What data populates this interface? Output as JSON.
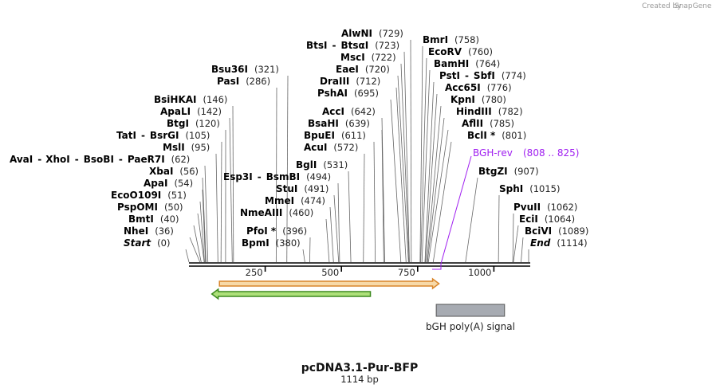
{
  "credit": {
    "prefix": "Created by",
    "brand": "SnapGene"
  },
  "map": {
    "title": "pcDNA3.1-Pur-BFP",
    "length_label": "1114 bp",
    "total_bp": 1114
  },
  "axis": {
    "ticks": [
      {
        "bp": 250,
        "label": "250"
      },
      {
        "bp": 500,
        "label": "500"
      },
      {
        "bp": 750,
        "label": "750"
      },
      {
        "bp": 1000,
        "label": "1000"
      }
    ]
  },
  "sites_left": [
    {
      "pos": "(62)",
      "bp": 62,
      "parts": [
        "AvaI",
        "-",
        "XhoI",
        "-",
        "BsoBI",
        "-",
        "PaeR7I"
      ]
    },
    {
      "pos": "(146)",
      "bp": 146,
      "parts": [
        "BsiHKAI"
      ]
    },
    {
      "pos": "(142)",
      "bp": 142,
      "parts": [
        "ApaLI"
      ]
    },
    {
      "pos": "(120)",
      "bp": 120,
      "parts": [
        "BtgI"
      ]
    },
    {
      "pos": "(105)",
      "bp": 105,
      "parts": [
        "TatI",
        "-",
        "BsrGI"
      ]
    },
    {
      "pos": "(95)",
      "bp": 95,
      "parts": [
        "MslI"
      ]
    },
    {
      "pos": "(56)",
      "bp": 56,
      "parts": [
        "XbaI"
      ]
    },
    {
      "pos": "(54)",
      "bp": 54,
      "parts": [
        "ApaI"
      ]
    },
    {
      "pos": "(51)",
      "bp": 51,
      "parts": [
        "EcoO109I"
      ]
    },
    {
      "pos": "(50)",
      "bp": 50,
      "parts": [
        "PspOMI"
      ]
    },
    {
      "pos": "(40)",
      "bp": 40,
      "parts": [
        "BmtI"
      ]
    },
    {
      "pos": "(36)",
      "bp": 36,
      "parts": [
        "NheI"
      ]
    },
    {
      "pos": "(0)",
      "bp": 0,
      "parts": [
        "Start"
      ],
      "italic": true
    }
  ],
  "sites_mid": [
    {
      "pos": "(321)",
      "bp": 321,
      "parts": [
        "Bsu36I"
      ]
    },
    {
      "pos": "(286)",
      "bp": 286,
      "parts": [
        "PasI"
      ]
    },
    {
      "pos": "(494)",
      "bp": 494,
      "parts": [
        "Esp3I",
        "-",
        "BsmBI"
      ]
    },
    {
      "pos": "(491)",
      "bp": 491,
      "parts": [
        "StuI"
      ]
    },
    {
      "pos": "(474)",
      "bp": 474,
      "parts": [
        "MmeI"
      ]
    },
    {
      "pos": "(460)",
      "bp": 460,
      "parts": [
        "NmeAIII"
      ]
    },
    {
      "pos": "(396)",
      "bp": 396,
      "parts": [
        "PfoI *"
      ]
    },
    {
      "pos": "(380)",
      "bp": 380,
      "parts": [
        "BpmI"
      ]
    },
    {
      "pos": "(531)",
      "bp": 531,
      "parts": [
        "BglI"
      ]
    },
    {
      "pos": "(572)",
      "bp": 572,
      "parts": [
        "AcuI"
      ]
    },
    {
      "pos": "(611)",
      "bp": 611,
      "parts": [
        "BpuEI"
      ]
    },
    {
      "pos": "(639)",
      "bp": 639,
      "parts": [
        "BsaHI"
      ]
    },
    {
      "pos": "(642)",
      "bp": 642,
      "parts": [
        "AccI"
      ]
    },
    {
      "pos": "(695)",
      "bp": 695,
      "parts": [
        "PshAI"
      ]
    },
    {
      "pos": "(712)",
      "bp": 712,
      "parts": [
        "DraIII"
      ]
    },
    {
      "pos": "(720)",
      "bp": 720,
      "parts": [
        "EaeI"
      ]
    },
    {
      "pos": "(722)",
      "bp": 722,
      "parts": [
        "MscI"
      ]
    },
    {
      "pos": "(723)",
      "bp": 723,
      "parts": [
        "BtsI",
        "-",
        "BtsαI"
      ]
    },
    {
      "pos": "(729)",
      "bp": 729,
      "parts": [
        "AlwNI"
      ]
    }
  ],
  "sites_right": [
    {
      "pos": "(758)",
      "bp": 758,
      "parts": [
        "BmrI"
      ]
    },
    {
      "pos": "(760)",
      "bp": 760,
      "parts": [
        "EcoRV"
      ]
    },
    {
      "pos": "(764)",
      "bp": 764,
      "parts": [
        "BamHI"
      ]
    },
    {
      "pos": "(774)",
      "bp": 774,
      "parts": [
        "PstI",
        "-",
        "SbfI"
      ]
    },
    {
      "pos": "(776)",
      "bp": 776,
      "parts": [
        "Acc65I"
      ]
    },
    {
      "pos": "(780)",
      "bp": 780,
      "parts": [
        "KpnI"
      ]
    },
    {
      "pos": "(782)",
      "bp": 782,
      "parts": [
        "HindIII"
      ]
    },
    {
      "pos": "(785)",
      "bp": 785,
      "parts": [
        "AflII"
      ]
    },
    {
      "pos": "(801)",
      "bp": 801,
      "parts": [
        "BclI *"
      ]
    },
    {
      "pos": "(907)",
      "bp": 907,
      "parts": [
        "BtgZI"
      ]
    },
    {
      "pos": "(1015)",
      "bp": 1015,
      "parts": [
        "SphI"
      ]
    },
    {
      "pos": "(1062)",
      "bp": 1062,
      "parts": [
        "PvuII"
      ]
    },
    {
      "pos": "(1064)",
      "bp": 1064,
      "parts": [
        "EciI"
      ]
    },
    {
      "pos": "(1089)",
      "bp": 1089,
      "parts": [
        "BciVI"
      ]
    },
    {
      "pos": "(1114)",
      "bp": 1114,
      "parts": [
        "End"
      ],
      "italic": true
    }
  ],
  "primer": {
    "name": "BGH-rev",
    "range": "(808 .. 825)",
    "color": "#a020f0"
  },
  "features": [
    {
      "name": "",
      "start_bp": 100,
      "end_bp": 820,
      "direction": "forward",
      "color": "#f7d9a8",
      "stroke": "#d9862b"
    },
    {
      "name": "",
      "start_bp": 75,
      "end_bp": 595,
      "direction": "reverse",
      "color": "#aee07a",
      "stroke": "#3d8a1f"
    },
    {
      "name": "bGH poly(A) signal",
      "start_bp": 811,
      "end_bp": 1035,
      "direction": "none",
      "color": "#a7abb2",
      "stroke": "#555"
    }
  ]
}
